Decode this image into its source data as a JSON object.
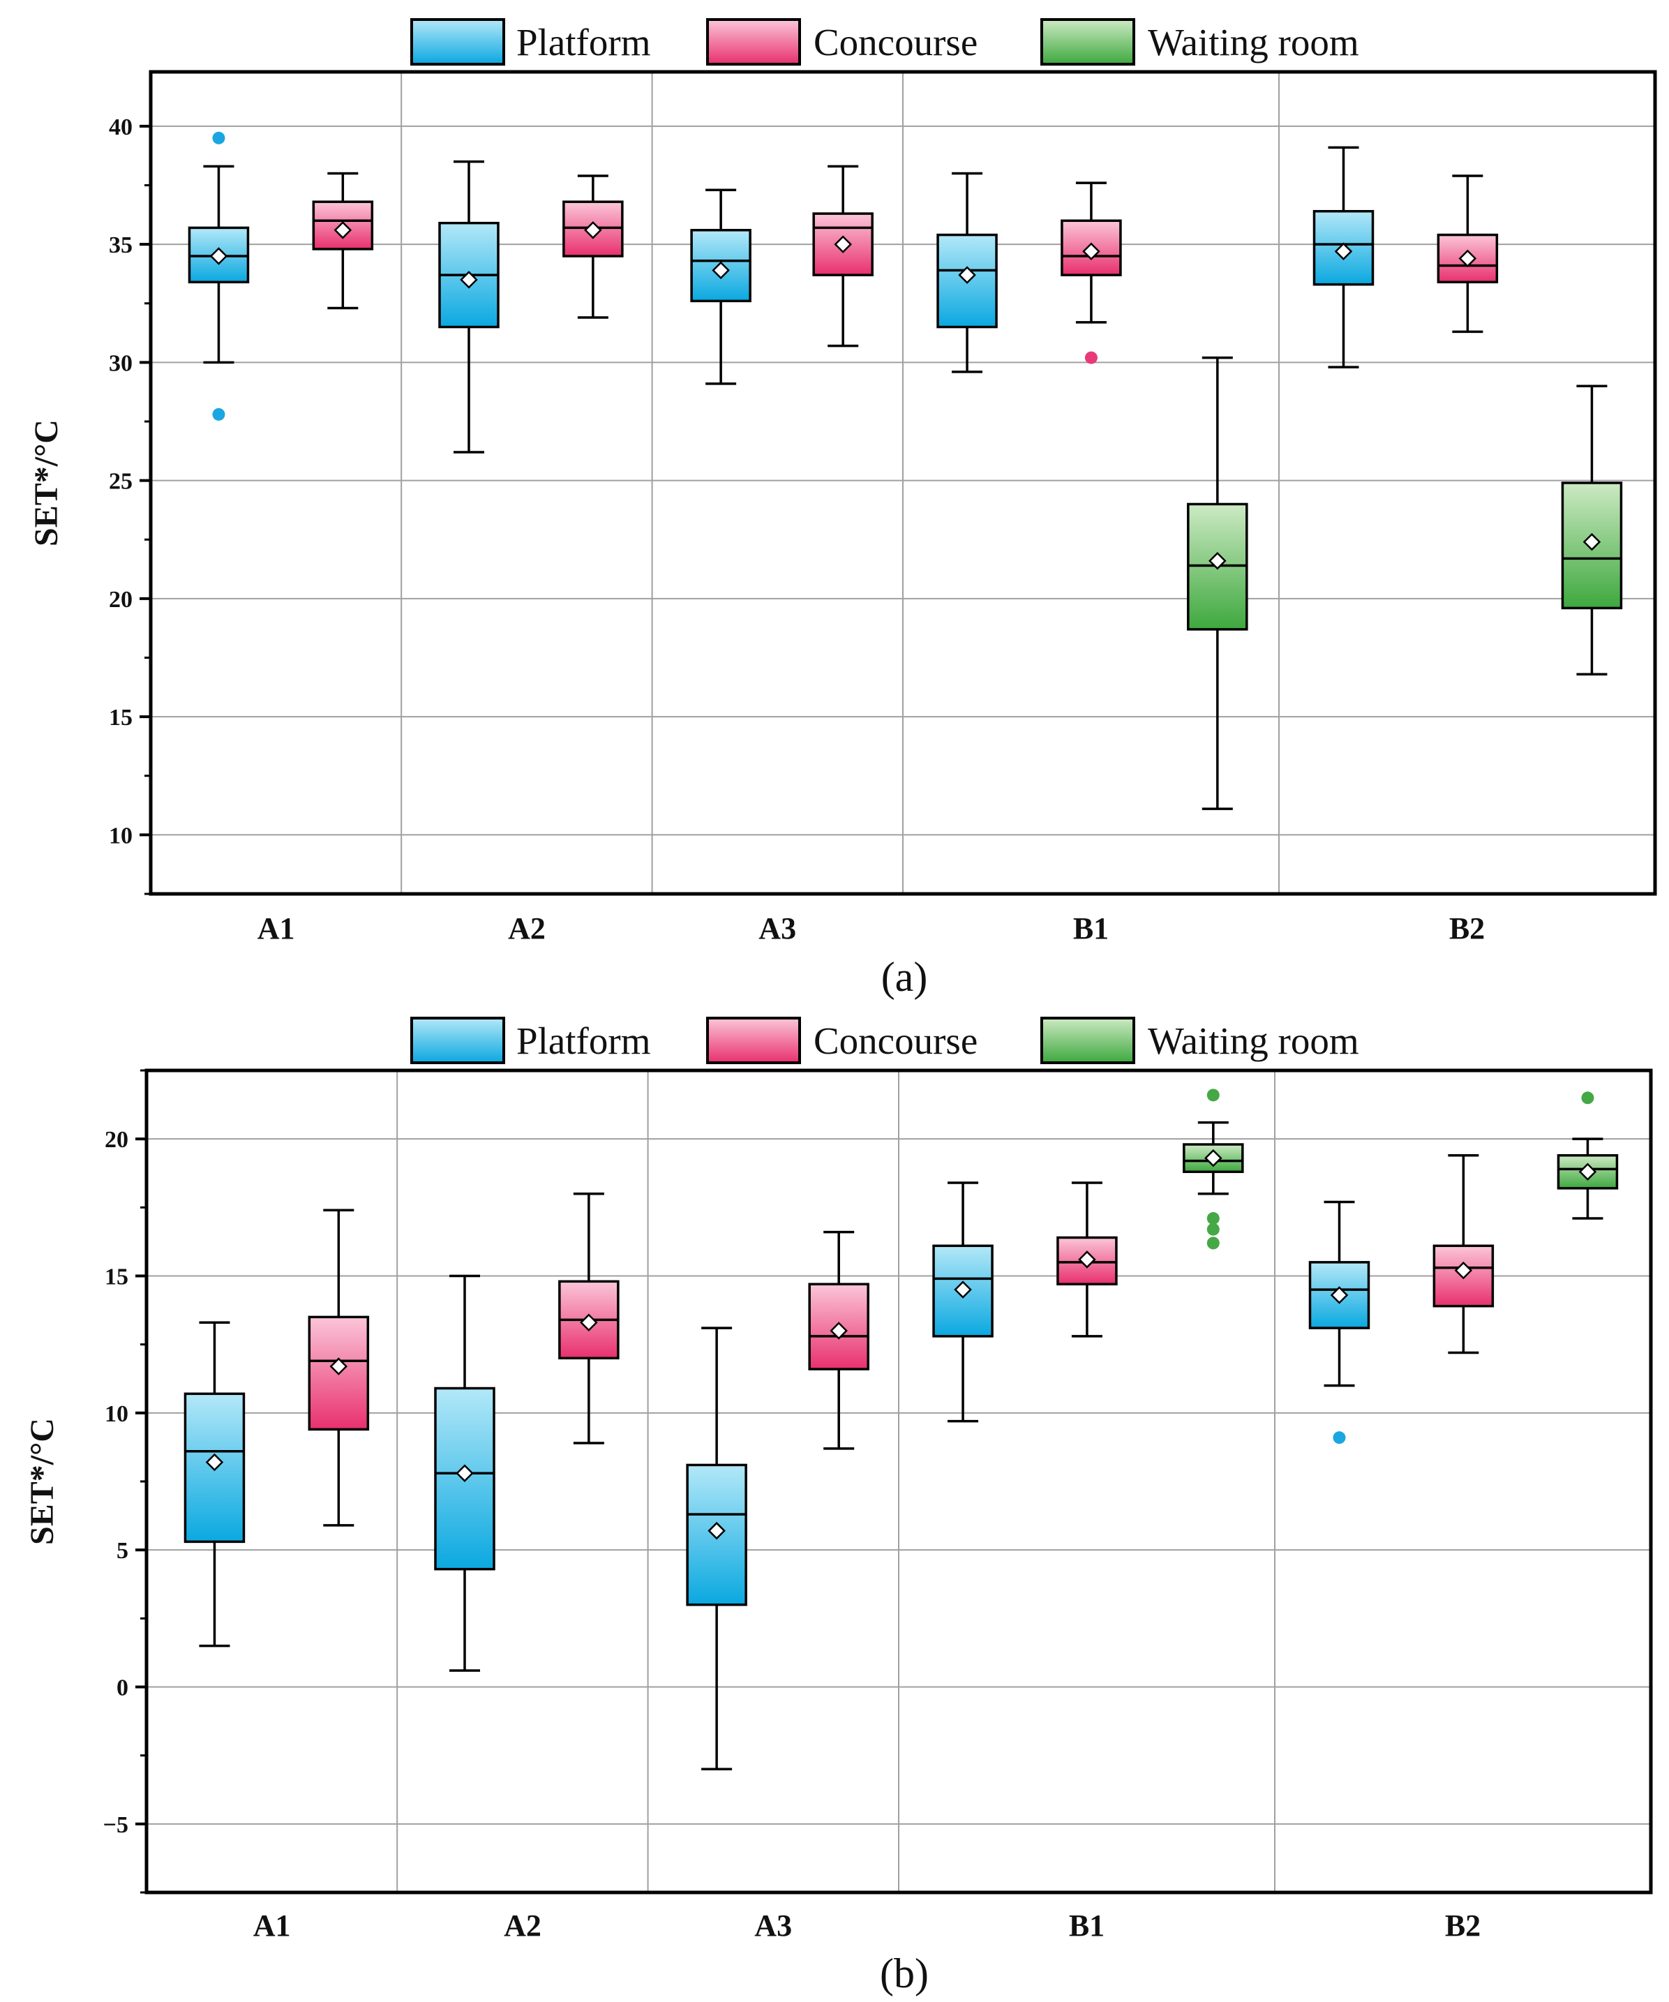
{
  "chart_data": [
    {
      "type": "box",
      "caption": "(a)",
      "ylabel": "SET*/°C",
      "ylim": [
        7.5,
        42.3
      ],
      "yticks": [
        10,
        15,
        20,
        25,
        30,
        35,
        40
      ],
      "ytick_labels": [
        "10",
        "15",
        "20",
        "25",
        "30",
        "35",
        "40"
      ],
      "legend": [
        "Platform",
        "Concourse",
        "Waiting room"
      ],
      "groups": [
        "A1",
        "A2",
        "A3",
        "B1",
        "B2"
      ],
      "boxes": [
        {
          "group": "A1",
          "series": "Platform",
          "min": 30.0,
          "q1": 33.4,
          "median": 34.5,
          "q3": 35.7,
          "max": 38.3,
          "mean": 34.5,
          "outliers": [
            39.5,
            27.8
          ]
        },
        {
          "group": "A1",
          "series": "Concourse",
          "min": 32.3,
          "q1": 34.8,
          "median": 36.0,
          "q3": 36.8,
          "max": 38.0,
          "mean": 35.6,
          "outliers": []
        },
        {
          "group": "A2",
          "series": "Platform",
          "min": 26.2,
          "q1": 31.5,
          "median": 33.7,
          "q3": 35.9,
          "max": 38.5,
          "mean": 33.5,
          "outliers": []
        },
        {
          "group": "A2",
          "series": "Concourse",
          "min": 31.9,
          "q1": 34.5,
          "median": 35.7,
          "q3": 36.8,
          "max": 37.9,
          "mean": 35.6,
          "outliers": []
        },
        {
          "group": "A3",
          "series": "Platform",
          "min": 29.1,
          "q1": 32.6,
          "median": 34.3,
          "q3": 35.6,
          "max": 37.3,
          "mean": 33.9,
          "outliers": []
        },
        {
          "group": "A3",
          "series": "Concourse",
          "min": 30.7,
          "q1": 33.7,
          "median": 35.7,
          "q3": 36.3,
          "max": 38.3,
          "mean": 35.0,
          "outliers": []
        },
        {
          "group": "B1",
          "series": "Platform",
          "min": 29.6,
          "q1": 31.5,
          "median": 33.9,
          "q3": 35.4,
          "max": 38.0,
          "mean": 33.7,
          "outliers": []
        },
        {
          "group": "B1",
          "series": "Concourse",
          "min": 31.7,
          "q1": 33.7,
          "median": 34.5,
          "q3": 36.0,
          "max": 37.6,
          "mean": 34.7,
          "outliers": [
            30.2
          ]
        },
        {
          "group": "B1",
          "series": "Waiting room",
          "min": 11.1,
          "q1": 18.7,
          "median": 21.4,
          "q3": 24.0,
          "max": 30.2,
          "mean": 21.6,
          "outliers": []
        },
        {
          "group": "B2",
          "series": "Platform",
          "min": 29.8,
          "q1": 33.3,
          "median": 35.0,
          "q3": 36.4,
          "max": 39.1,
          "mean": 34.7,
          "outliers": []
        },
        {
          "group": "B2",
          "series": "Concourse",
          "min": 31.3,
          "q1": 33.4,
          "median": 34.1,
          "q3": 35.4,
          "max": 37.9,
          "mean": 34.4,
          "outliers": []
        },
        {
          "group": "B2",
          "series": "Waiting room",
          "min": 16.8,
          "q1": 19.6,
          "median": 21.7,
          "q3": 24.9,
          "max": 29.0,
          "mean": 22.4,
          "outliers": []
        }
      ]
    },
    {
      "type": "box",
      "caption": "(b)",
      "ylabel": "SET*/°C",
      "ylim": [
        -7.5,
        22.5
      ],
      "yticks": [
        -5,
        0,
        5,
        10,
        15,
        20
      ],
      "ytick_labels": [
        "−5",
        "0",
        "5",
        "10",
        "15",
        "20"
      ],
      "legend": [
        "Platform",
        "Concourse",
        "Waiting room"
      ],
      "groups": [
        "A1",
        "A2",
        "A3",
        "B1",
        "B2"
      ],
      "boxes": [
        {
          "group": "A1",
          "series": "Platform",
          "min": 1.5,
          "q1": 5.3,
          "median": 8.6,
          "q3": 10.7,
          "max": 13.3,
          "mean": 8.2,
          "outliers": []
        },
        {
          "group": "A1",
          "series": "Concourse",
          "min": 5.9,
          "q1": 9.4,
          "median": 11.9,
          "q3": 13.5,
          "max": 17.4,
          "mean": 11.7,
          "outliers": []
        },
        {
          "group": "A2",
          "series": "Platform",
          "min": 0.6,
          "q1": 4.3,
          "median": 7.8,
          "q3": 10.9,
          "max": 15.0,
          "mean": 7.8,
          "outliers": []
        },
        {
          "group": "A2",
          "series": "Concourse",
          "min": 8.9,
          "q1": 12.0,
          "median": 13.4,
          "q3": 14.8,
          "max": 18.0,
          "mean": 13.3,
          "outliers": []
        },
        {
          "group": "A3",
          "series": "Platform",
          "min": -3.0,
          "q1": 3.0,
          "median": 6.3,
          "q3": 8.1,
          "max": 13.1,
          "mean": 5.7,
          "outliers": []
        },
        {
          "group": "A3",
          "series": "Concourse",
          "min": 8.7,
          "q1": 11.6,
          "median": 12.8,
          "q3": 14.7,
          "max": 16.6,
          "mean": 13.0,
          "outliers": []
        },
        {
          "group": "B1",
          "series": "Platform",
          "min": 9.7,
          "q1": 12.8,
          "median": 14.9,
          "q3": 16.1,
          "max": 18.4,
          "mean": 14.5,
          "outliers": []
        },
        {
          "group": "B1",
          "series": "Concourse",
          "min": 12.8,
          "q1": 14.7,
          "median": 15.5,
          "q3": 16.4,
          "max": 18.4,
          "mean": 15.6,
          "outliers": []
        },
        {
          "group": "B1",
          "series": "Waiting room",
          "min": 18.0,
          "q1": 18.8,
          "median": 19.2,
          "q3": 19.8,
          "max": 20.6,
          "mean": 19.3,
          "outliers": [
            21.6,
            17.1,
            16.7,
            16.2
          ]
        },
        {
          "group": "B2",
          "series": "Platform",
          "min": 11.0,
          "q1": 13.1,
          "median": 14.5,
          "q3": 15.5,
          "max": 17.7,
          "mean": 14.3,
          "outliers": [
            9.1
          ]
        },
        {
          "group": "B2",
          "series": "Concourse",
          "min": 12.2,
          "q1": 13.9,
          "median": 15.3,
          "q3": 16.1,
          "max": 19.4,
          "mean": 15.2,
          "outliers": []
        },
        {
          "group": "B2",
          "series": "Waiting room",
          "min": 17.1,
          "q1": 18.2,
          "median": 18.9,
          "q3": 19.4,
          "max": 20.0,
          "mean": 18.8,
          "outliers": [
            21.5
          ]
        }
      ]
    }
  ],
  "colors": {
    "Platform": {
      "light": "#b3e8f8",
      "dark": "#0aa8e0",
      "dot": "#1aa6e0"
    },
    "Concourse": {
      "light": "#fbc6d9",
      "dark": "#e8306e",
      "dot": "#e83a78"
    },
    "Waiting room": {
      "light": "#cdeac4",
      "dark": "#3ea83e",
      "dot": "#45a845"
    },
    "grid": "#a0a0a0",
    "axis": "#000000"
  }
}
